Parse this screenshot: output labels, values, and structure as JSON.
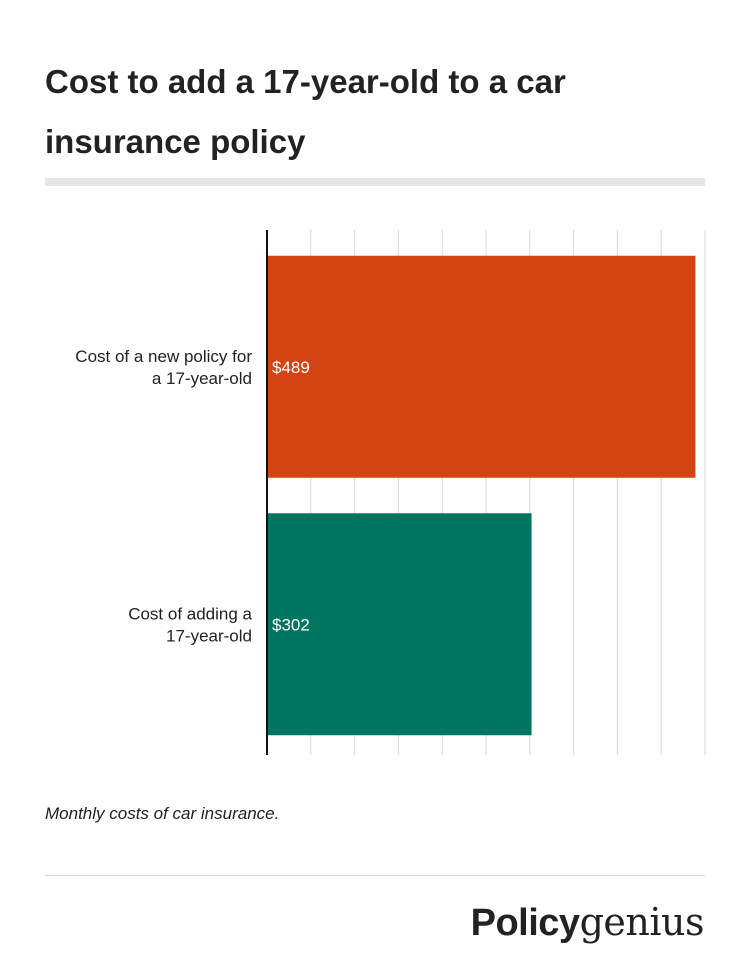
{
  "header": {
    "title": "Cost to add a 17-year-old to a car insurance policy"
  },
  "chart_data": {
    "type": "bar",
    "orientation": "horizontal",
    "title": "Cost to add a 17-year-old to a car insurance policy",
    "categories_lines": [
      [
        "Cost of a new policy for",
        "a 17-year-old"
      ],
      [
        "Cost of adding a",
        "17-year-old"
      ]
    ],
    "categories": [
      "Cost of a new policy for a 17-year-old",
      "Cost of adding a 17-year-old"
    ],
    "values": [
      489,
      302
    ],
    "value_labels": [
      "$489",
      "$302"
    ],
    "colors": [
      "#d34314",
      "#007560"
    ],
    "xlim": [
      0,
      500
    ],
    "grid": true,
    "xlabel": "",
    "ylabel": ""
  },
  "footer": {
    "note": "Monthly costs of car insurance.",
    "logo_part1": "Policy",
    "logo_part2": "genius"
  }
}
